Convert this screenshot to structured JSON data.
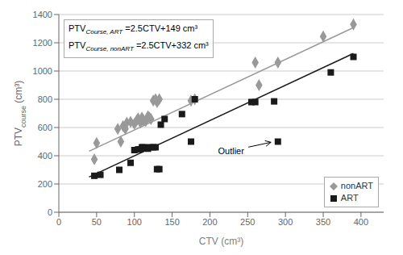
{
  "chart_data": {
    "type": "scatter",
    "xlabel": "CTV (cm³)",
    "ylabel": {
      "text": "PTV",
      "subscript": "course",
      "text_after": " (cm³)"
    },
    "xlim": [
      0,
      430
    ],
    "ylim": [
      0,
      1400
    ],
    "xticks": [
      0,
      50,
      100,
      150,
      200,
      250,
      300,
      350,
      400
    ],
    "yticks": [
      0,
      200,
      400,
      600,
      800,
      1000,
      1200,
      1400
    ],
    "grid": "y",
    "legend": "lower right",
    "series": [
      {
        "name": "nonART",
        "type": "scatter",
        "color": "#999999",
        "marker": "diamond",
        "x": [
          47,
          50,
          78,
          82,
          85,
          88,
          90,
          95,
          100,
          103,
          105,
          108,
          110,
          112,
          115,
          118,
          120,
          122,
          125,
          128,
          130,
          133,
          175,
          180,
          260,
          265,
          290,
          350,
          390
        ],
        "values": [
          375,
          490,
          590,
          500,
          610,
          590,
          635,
          640,
          625,
          650,
          665,
          635,
          670,
          650,
          645,
          680,
          670,
          660,
          790,
          800,
          780,
          800,
          790,
          800,
          1060,
          900,
          1060,
          1245,
          1330
        ]
      },
      {
        "name": "ART",
        "type": "scatter",
        "color": "#1a1a1a",
        "marker": "square",
        "x": [
          47,
          55,
          80,
          95,
          100,
          105,
          108,
          110,
          112,
          115,
          118,
          120,
          125,
          128,
          130,
          133,
          135,
          140,
          163,
          175,
          180,
          255,
          260,
          285,
          290,
          360,
          390
        ],
        "values": [
          258,
          265,
          300,
          350,
          440,
          445,
          445,
          460,
          460,
          455,
          450,
          460,
          460,
          460,
          305,
          305,
          620,
          660,
          695,
          500,
          800,
          780,
          780,
          785,
          500,
          990,
          1100
        ]
      },
      {
        "type": "line",
        "color": "#1a1a1a",
        "x": [
          40,
          390
        ],
        "values": [
          249,
          1124
        ]
      },
      {
        "type": "line",
        "color": "#999999",
        "x": [
          40,
          390
        ],
        "values": [
          432,
          1307
        ]
      }
    ],
    "annotations": [
      {
        "text": "Outlier",
        "x": 285,
        "y": 500,
        "text_x": 228,
        "text_y": 435
      }
    ],
    "text_box": [
      {
        "text": "PTV",
        "subscript": "Course, ART",
        "text_after": " =2.5CTV+149 cm³"
      },
      {
        "text": "PTV",
        "subscript": "Course, nonART",
        "text_after": " =2.5CTV+332 cm³"
      }
    ]
  }
}
